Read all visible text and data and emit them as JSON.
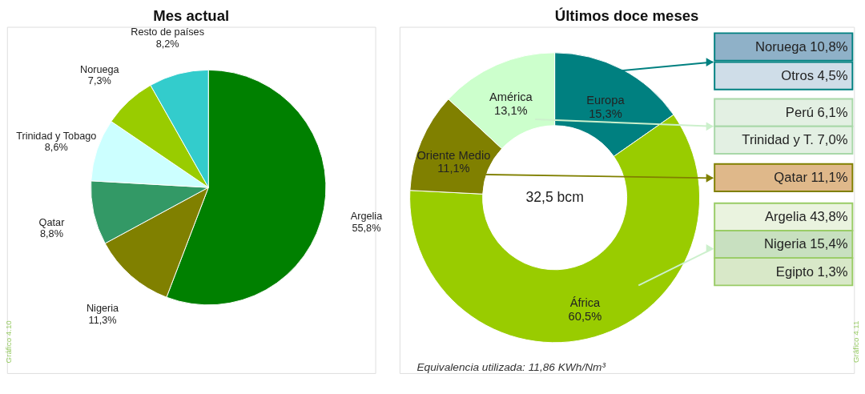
{
  "chart_data": [
    {
      "type": "pie",
      "title": "Mes actual",
      "categories": [
        "Argelia",
        "Nigeria",
        "Qatar",
        "Trinidad y Tobago",
        "Noruega",
        "Resto de países"
      ],
      "values": [
        55.8,
        11.3,
        8.8,
        8.6,
        7.3,
        8.2
      ],
      "value_labels": [
        "55,8%",
        "11,3%",
        "8,8%",
        "8,6%",
        "7,3%",
        "8,2%"
      ],
      "colors": [
        "#008000",
        "#808000",
        "#339966",
        "#ccffff",
        "#99cc00",
        "#33cccc"
      ],
      "annotations": [
        "Gráfico 4.10"
      ],
      "legend": false
    },
    {
      "type": "donut",
      "title": "Últimos doce meses",
      "categories": [
        "Europa",
        "África",
        "Oriente Medio",
        "América"
      ],
      "values": [
        15.3,
        60.5,
        11.1,
        13.1
      ],
      "value_labels": [
        "15,3%",
        "60,5%",
        "11,1%",
        "13,1%"
      ],
      "colors": [
        "#008080",
        "#99cc00",
        "#808000",
        "#ccffcc"
      ],
      "annotations": [
        "32,5 bcm",
        "Noruega 10,8%",
        "Otros 4,5%",
        "Perú 6,1%",
        "Trinidad y T. 7,0%",
        "Qatar 11,1%",
        "Argelia 43,8%",
        "Nigeria 15,4%",
        "Egipto 1,3%",
        "Equivalencia utilizada: 11,86 KWh/Nm³",
        "Gráfico 4.11"
      ],
      "legend": false
    }
  ]
}
